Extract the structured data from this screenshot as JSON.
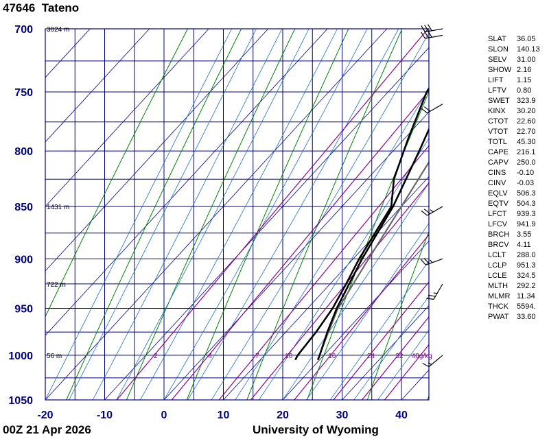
{
  "header": {
    "station_id": "47646",
    "station_name": "Tateno"
  },
  "footer": {
    "time": "00Z 21 Apr 2026",
    "credit": "University of Wyoming"
  },
  "indices": [
    {
      "name": "SLAT",
      "value": "36.05"
    },
    {
      "name": "SLON",
      "value": "140.13"
    },
    {
      "name": "SELV",
      "value": "31.00"
    },
    {
      "name": "SHOW",
      "value": "2.16"
    },
    {
      "name": "LIFT",
      "value": "1.15"
    },
    {
      "name": "LFTV",
      "value": "0.80"
    },
    {
      "name": "SWET",
      "value": "323.9"
    },
    {
      "name": "KINX",
      "value": "30.20"
    },
    {
      "name": "CTOT",
      "value": "22.60"
    },
    {
      "name": "VTOT",
      "value": "22.70"
    },
    {
      "name": "TOTL",
      "value": "45.30"
    },
    {
      "name": "CAPE",
      "value": "216.1"
    },
    {
      "name": "CAPV",
      "value": "250.0"
    },
    {
      "name": "CINS",
      "value": "-0.10"
    },
    {
      "name": "CINV",
      "value": "-0.03"
    },
    {
      "name": "EQLV",
      "value": "506.3"
    },
    {
      "name": "EQTV",
      "value": "504.3"
    },
    {
      "name": "LFCT",
      "value": "939.3"
    },
    {
      "name": "LFCV",
      "value": "941.9"
    },
    {
      "name": "BRCH",
      "value": "3.55"
    },
    {
      "name": "BRCV",
      "value": "4.11"
    },
    {
      "name": "LCLT",
      "value": "288.0"
    },
    {
      "name": "LCLP",
      "value": "951.3"
    },
    {
      "name": "LCLE",
      "value": "324.5"
    },
    {
      "name": "MLTH",
      "value": "292.2"
    },
    {
      "name": "MLMR",
      "value": "11.34"
    },
    {
      "name": "THCK",
      "value": "5594."
    },
    {
      "name": "PWAT",
      "value": "33.60"
    }
  ],
  "chart_data": {
    "type": "skew-t",
    "pressure_ticks": [
      "700",
      "750",
      "800",
      "850",
      "900",
      "950",
      "1000",
      "1050"
    ],
    "pressure_levels": [
      700,
      750,
      800,
      850,
      900,
      950,
      1000,
      1050
    ],
    "temperature_ticks": [
      "-20",
      "-10",
      "0",
      "10",
      "20",
      "30",
      "40"
    ],
    "temperature_values": [
      -20,
      -10,
      0,
      10,
      20,
      30,
      40
    ],
    "ylim": [
      1050,
      700
    ],
    "xlim": [
      -20,
      45
    ],
    "height_labels": [
      {
        "text": "3024 m",
        "pressure": 700
      },
      {
        "text": "1431 m",
        "pressure": 850
      },
      {
        "text": "722 m",
        "pressure": 925
      },
      {
        "text": "56 m",
        "pressure": 1000
      }
    ],
    "mixing_ratio_labels": [
      "2",
      "4",
      "7",
      "10",
      "16",
      "24",
      "32",
      "40g/kg"
    ],
    "mixing_ratios": [
      2,
      4,
      7,
      10,
      16,
      24,
      32,
      40
    ],
    "temperature_profile": [
      {
        "p": 1005,
        "t": 19.7
      },
      {
        "p": 1000,
        "t": 19.3
      },
      {
        "p": 975,
        "t": 17.0
      },
      {
        "p": 950,
        "t": 14.9
      },
      {
        "p": 925,
        "t": 13.2
      },
      {
        "p": 900,
        "t": 11.5
      },
      {
        "p": 850,
        "t": 8.6
      },
      {
        "p": 800,
        "t": 4.4
      },
      {
        "p": 750,
        "t": -0.3
      },
      {
        "p": 700,
        "t": -4.6
      }
    ],
    "dewpoint_profile": [
      {
        "p": 1005,
        "t": 15.9
      },
      {
        "p": 1000,
        "t": 15.6
      },
      {
        "p": 975,
        "t": 15.1
      },
      {
        "p": 950,
        "t": 14.2
      },
      {
        "p": 925,
        "t": 12.7
      },
      {
        "p": 900,
        "t": 11.0
      },
      {
        "p": 850,
        "t": 8.3
      },
      {
        "p": 825,
        "t": 4.5
      },
      {
        "p": 790,
        "t": 0.7
      },
      {
        "p": 750,
        "t": -3.5
      },
      {
        "p": 700,
        "t": -6.7
      }
    ],
    "parcel_profile": [
      {
        "p": 1005,
        "t": 19.7
      },
      {
        "p": 980,
        "t": 17.6
      },
      {
        "p": 951.3,
        "t": 15.2
      },
      {
        "p": 900,
        "t": 12.6
      },
      {
        "p": 850,
        "t": 10.0
      },
      {
        "p": 800,
        "t": 7.2
      },
      {
        "p": 750,
        "t": 4.2
      },
      {
        "p": 700,
        "t": 0.9
      }
    ],
    "wind_barbs": [
      {
        "p": 1000,
        "direction": 230,
        "speed": 15
      },
      {
        "p": 925,
        "direction": 210,
        "speed": 25
      },
      {
        "p": 900,
        "direction": 250,
        "speed": 25
      },
      {
        "p": 850,
        "direction": 240,
        "speed": 25
      },
      {
        "p": 760,
        "direction": 240,
        "speed": 20
      },
      {
        "p": 705,
        "direction": 260,
        "speed": 30
      },
      {
        "p": 700,
        "direction": 260,
        "speed": 30
      }
    ],
    "colors": {
      "axis": "#000080",
      "isotherm": "#00008B",
      "dry_adiabat": "#008000",
      "moist_adiabat": "#1E6FBF",
      "mixing_ratio": "#8B008B",
      "temperature": "#000000",
      "dewpoint": "#000000",
      "parcel": "#666666",
      "wind": "#000000"
    }
  }
}
